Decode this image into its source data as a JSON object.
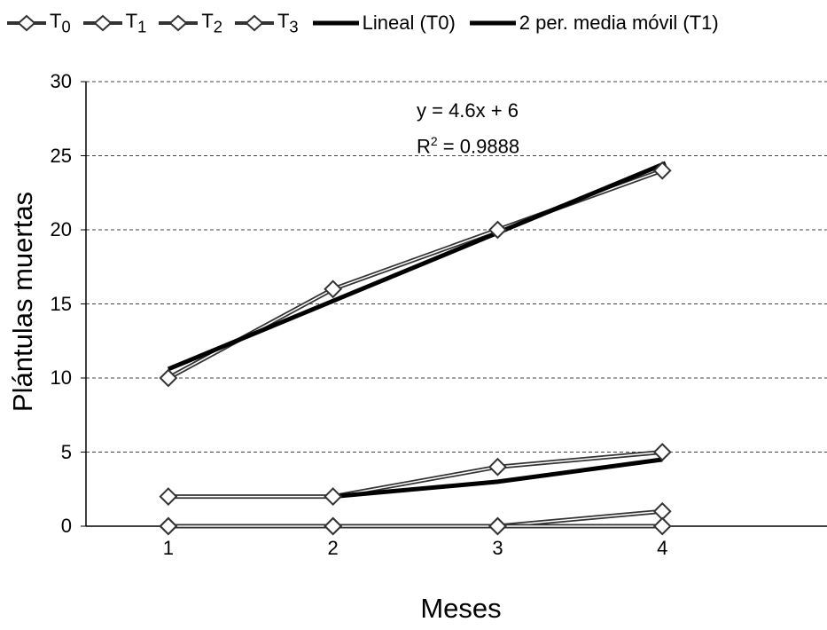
{
  "chart_data": {
    "type": "line",
    "xlabel": "Meses",
    "ylabel": "Plántulas muertas",
    "x": [
      1,
      2,
      3,
      4
    ],
    "xlim": [
      0.5,
      5
    ],
    "ylim": [
      0,
      30
    ],
    "yticks": [
      0,
      5,
      10,
      15,
      20,
      25,
      30
    ],
    "xticks": [
      1,
      2,
      3,
      4
    ],
    "grid": "horizontal dashed",
    "legend_position": "top",
    "series": [
      {
        "name": "T",
        "name_sub": "0",
        "values": [
          10,
          16,
          20,
          24
        ],
        "marker": "diamond",
        "color": "#333333"
      },
      {
        "name": "T",
        "name_sub": "1",
        "values": [
          2,
          2,
          4,
          5
        ],
        "marker": "diamond",
        "color": "#333333"
      },
      {
        "name": "T",
        "name_sub": "2",
        "values": [
          0,
          0,
          0,
          1
        ],
        "marker": "diamond",
        "color": "#333333"
      },
      {
        "name": "T",
        "name_sub": "3",
        "values": [
          0,
          0,
          0,
          0
        ],
        "marker": "diamond",
        "color": "#333333"
      }
    ],
    "trendlines": [
      {
        "name": "Lineal (T0)",
        "type": "linear",
        "slope": 4.6,
        "intercept": 6,
        "range": [
          1,
          4.02
        ],
        "color": "#000000"
      },
      {
        "name": "2 per. media móvil (T1)",
        "type": "moving_average",
        "period": 2,
        "x": [
          2,
          3,
          4
        ],
        "values": [
          2,
          3,
          4.5
        ],
        "color": "#000000"
      }
    ],
    "annotation": {
      "equation": "y = 4.6x + 6",
      "r2_prefix": "R",
      "r2_sup": "2",
      "r2_value": " = 0.9888"
    }
  }
}
